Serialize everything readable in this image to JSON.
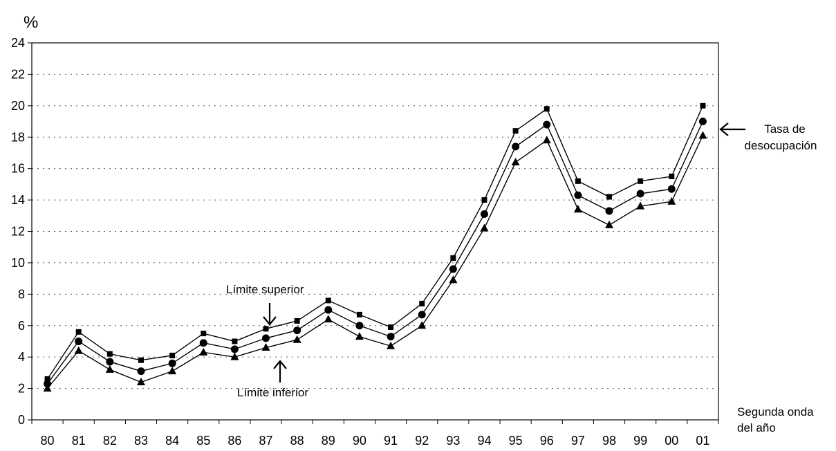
{
  "chart_data": {
    "type": "line",
    "y_unit_label": "%",
    "x_axis_label": [
      "Segunda onda",
      "del año"
    ],
    "categories": [
      "80",
      "81",
      "82",
      "83",
      "84",
      "85",
      "86",
      "87",
      "88",
      "89",
      "90",
      "91",
      "92",
      "93",
      "94",
      "95",
      "96",
      "97",
      "98",
      "99",
      "00",
      "01"
    ],
    "ylim": [
      0,
      24
    ],
    "yticks": [
      "0",
      "2",
      "4",
      "6",
      "8",
      "10",
      "12",
      "14",
      "16",
      "18",
      "20",
      "22",
      "24"
    ],
    "grid": "horizontal-dotted",
    "series": [
      {
        "name": "Límite superior",
        "marker": "square",
        "values": [
          2.6,
          5.6,
          4.2,
          3.8,
          4.1,
          5.5,
          5.0,
          5.8,
          6.3,
          7.6,
          6.7,
          5.9,
          7.4,
          10.3,
          14.0,
          18.4,
          19.8,
          15.2,
          14.2,
          15.2,
          15.5,
          20.0
        ]
      },
      {
        "name": "Tasa de desocupación",
        "marker": "circle",
        "values": [
          2.3,
          5.0,
          3.7,
          3.1,
          3.6,
          4.9,
          4.5,
          5.2,
          5.7,
          7.0,
          6.0,
          5.3,
          6.7,
          9.6,
          13.1,
          17.4,
          18.8,
          14.3,
          13.3,
          14.4,
          14.7,
          19.0
        ]
      },
      {
        "name": "Límite inferior",
        "marker": "triangle",
        "values": [
          2.0,
          4.4,
          3.2,
          2.4,
          3.1,
          4.3,
          4.0,
          4.6,
          5.1,
          6.4,
          5.3,
          4.7,
          6.0,
          8.9,
          12.2,
          16.4,
          17.8,
          13.4,
          12.4,
          13.6,
          13.9,
          18.1
        ]
      }
    ],
    "annotations": {
      "upper": "Límite superior",
      "lower": "Límite inferior",
      "rate": [
        "Tasa de",
        "desocupación"
      ]
    },
    "colors": {
      "line": "#000000",
      "grid": "#555555",
      "background": "#ffffff"
    }
  }
}
